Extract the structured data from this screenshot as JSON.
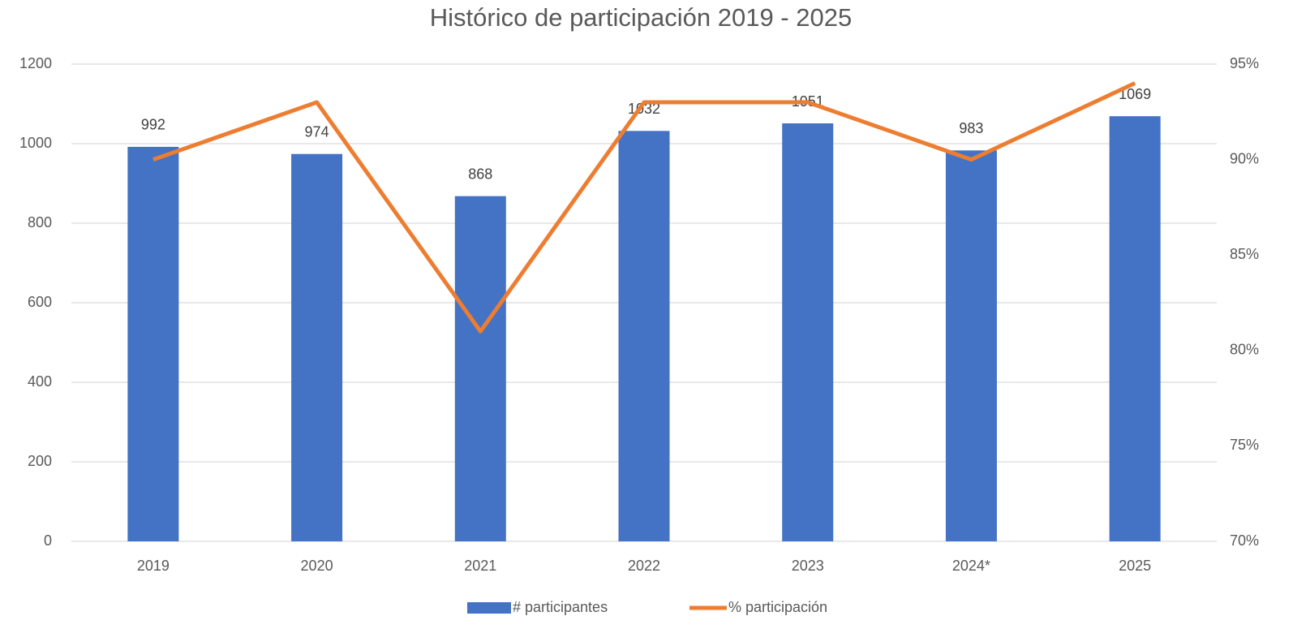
{
  "chart_data": {
    "type": "bar",
    "title": "Histórico de participación 2019 - 2025",
    "categories": [
      "2019",
      "2020",
      "2021",
      "2022",
      "2023",
      "2024*",
      "2025"
    ],
    "series": [
      {
        "name": "# participantes",
        "type": "bar",
        "color": "#4472c4",
        "values": [
          992,
          974,
          868,
          1032,
          1051,
          983,
          1069
        ]
      },
      {
        "name": "% participación",
        "type": "line",
        "axis": "y2",
        "color": "#ed7d31",
        "values": [
          90,
          93,
          81,
          93,
          93,
          90,
          94
        ]
      }
    ],
    "ylim": [
      0,
      1200
    ],
    "yticks": [
      0,
      200,
      400,
      600,
      800,
      1000,
      1200
    ],
    "y2lim": [
      70,
      95
    ],
    "y2ticks": [
      {
        "value": 70,
        "label": "70%"
      },
      {
        "value": 75,
        "label": "75%"
      },
      {
        "value": 80,
        "label": "80%"
      },
      {
        "value": 85,
        "label": "85%"
      },
      {
        "value": 90,
        "label": "90%"
      },
      {
        "value": 95,
        "label": "95%"
      }
    ],
    "grid": true,
    "legend": "bottom"
  }
}
